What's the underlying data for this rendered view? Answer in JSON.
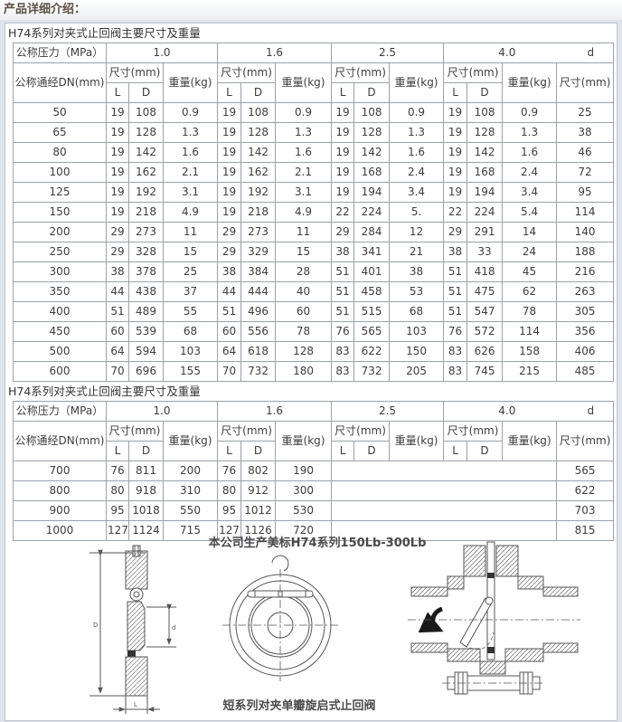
{
  "page_title": "产品详细介绍：",
  "table_caption": "H74系列对夹式止回阀主要尺寸及重量",
  "header_labels": {
    "pressure": "公称压力（MPa）",
    "dn": "公称通经DN(mm)",
    "size_mm": "尺寸(mm)",
    "weight_kg": "重量(kg)",
    "L": "L",
    "D": "D",
    "d": "d",
    "p10": "1.0",
    "p16": "1.6",
    "p25": "2.5",
    "p40": "4.0"
  },
  "table1": {
    "rows": [
      [
        "50",
        "19",
        "108",
        "0.9",
        "19",
        "108",
        "0.9",
        "19",
        "108",
        "0.9",
        "19",
        "108",
        "0.9",
        "25"
      ],
      [
        "65",
        "19",
        "128",
        "1.3",
        "19",
        "128",
        "1.3",
        "19",
        "128",
        "1.3",
        "19",
        "128",
        "1.3",
        "38"
      ],
      [
        "80",
        "19",
        "142",
        "1.6",
        "19",
        "142",
        "1.6",
        "19",
        "142",
        "1.6",
        "19",
        "142",
        "1.6",
        "46"
      ],
      [
        "100",
        "19",
        "162",
        "2.1",
        "19",
        "162",
        "2.1",
        "19",
        "168",
        "2.4",
        "19",
        "168",
        "2.4",
        "72"
      ],
      [
        "125",
        "19",
        "192",
        "3.1",
        "19",
        "192",
        "3.1",
        "19",
        "194",
        "3.4",
        "19",
        "194",
        "3.4",
        "95"
      ],
      [
        "150",
        "19",
        "218",
        "4.9",
        "19",
        "218",
        "4.9",
        "22",
        "224",
        "5.",
        "22",
        "224",
        "5.4",
        "114"
      ],
      [
        "200",
        "29",
        "273",
        "11",
        "29",
        "273",
        "11",
        "29",
        "284",
        "12",
        "29",
        "291",
        "14",
        "140"
      ],
      [
        "250",
        "29",
        "328",
        "15",
        "29",
        "329",
        "15",
        "38",
        "341",
        "21",
        "38",
        "33",
        "24",
        "188"
      ],
      [
        "300",
        "38",
        "378",
        "25",
        "38",
        "384",
        "28",
        "51",
        "401",
        "38",
        "51",
        "418",
        "45",
        "216"
      ],
      [
        "350",
        "44",
        "438",
        "37",
        "44",
        "444",
        "40",
        "51",
        "458",
        "53",
        "51",
        "475",
        "62",
        "263"
      ],
      [
        "400",
        "51",
        "489",
        "55",
        "51",
        "496",
        "60",
        "51",
        "515",
        "68",
        "51",
        "547",
        "78",
        "305"
      ],
      [
        "450",
        "60",
        "539",
        "68",
        "60",
        "556",
        "78",
        "76",
        "565",
        "103",
        "76",
        "572",
        "114",
        "356"
      ],
      [
        "500",
        "64",
        "594",
        "103",
        "64",
        "618",
        "128",
        "83",
        "622",
        "150",
        "83",
        "626",
        "158",
        "406"
      ],
      [
        "600",
        "70",
        "696",
        "155",
        "70",
        "732",
        "180",
        "83",
        "732",
        "205",
        "83",
        "745",
        "215",
        "485"
      ]
    ]
  },
  "table2": {
    "rows": [
      [
        "700",
        "76",
        "811",
        "200",
        "76",
        "802",
        "190",
        "",
        "565"
      ],
      [
        "800",
        "80",
        "918",
        "310",
        "80",
        "912",
        "300",
        "",
        "622"
      ],
      [
        "900",
        "95",
        "1018",
        "550",
        "95",
        "1012",
        "530",
        "",
        "703"
      ],
      [
        "1000",
        "127",
        "1124",
        "715",
        "127",
        "1126",
        "720",
        "",
        "815"
      ]
    ]
  },
  "figures": {
    "caption_top": "本公司生产美标H74系列150Lb-300Lb",
    "caption_bottom": "短系列对夹单瓣旋启式止回阀",
    "dims": {
      "left": "D",
      "mid": "d",
      "bottom": "L"
    }
  },
  "colors": {
    "page_bg": "#dde4ec",
    "panel_bg": "#ffffff",
    "table_border": "#9ba2a9",
    "text": "#3d3d3d",
    "title_text": "#5a5145"
  }
}
